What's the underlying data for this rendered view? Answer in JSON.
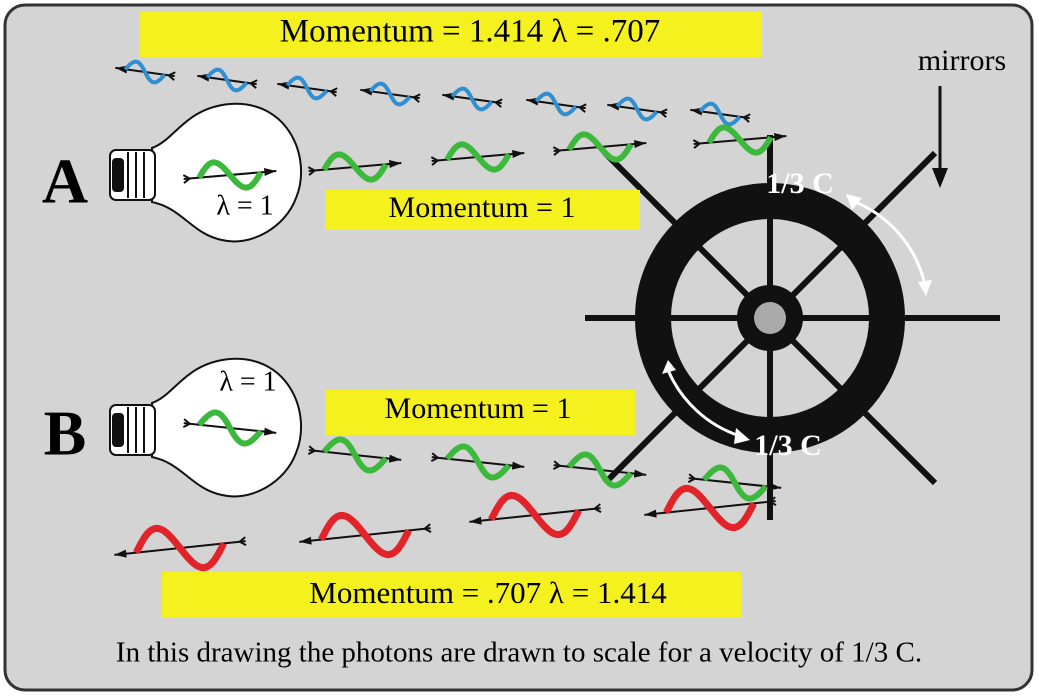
{
  "top_box": {
    "text": "Momentum  = 1.414    λ  = .707"
  },
  "mirrors_label": "mirrors",
  "section_a": {
    "letter": "A",
    "wavelength": "λ = 1",
    "momentum": "Momentum = 1"
  },
  "wheel": {
    "speed_top": "1/3 C",
    "speed_bottom": "1/3 C"
  },
  "section_b": {
    "letter": "B",
    "wavelength": "λ = 1",
    "momentum": "Momentum = 1"
  },
  "bottom_box": {
    "text": "Momentum  = .707  λ = 1.414"
  },
  "caption": "In this drawing the photons are drawn to scale for a velocity of 1/3 C."
}
